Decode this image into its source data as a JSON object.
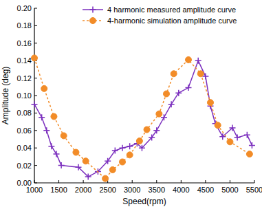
{
  "chart_data": {
    "type": "line",
    "x_label": "Speed(rpm)",
    "y_label": "Amplitude (deg)",
    "xlim": [
      1000,
      5500
    ],
    "xticks": [
      1000,
      1500,
      2000,
      2500,
      3000,
      3500,
      4000,
      4500,
      5000,
      5500
    ],
    "ylim": [
      0,
      0.2
    ],
    "yticks": [
      {
        "value": 0,
        "label": "0.00"
      },
      {
        "value": 0.02,
        "label": "0.02"
      },
      {
        "value": 0.04,
        "label": "0.04"
      },
      {
        "value": 0.06,
        "label": "0.06"
      },
      {
        "value": 0.08,
        "label": "0.08"
      },
      {
        "value": 0.1,
        "label": "0.10"
      },
      {
        "value": 0.12,
        "label": "0.12"
      },
      {
        "value": 0.14,
        "label": "0.14"
      },
      {
        "value": 0.16,
        "label": "0.16"
      },
      {
        "value": 0.18,
        "label": "0.18"
      },
      {
        "value": 0.2,
        "label": "0.20"
      }
    ],
    "grid": false,
    "legend": "top-right",
    "series": [
      {
        "name": "4 harmonic measured amplitude curve",
        "color": "#7b2fbe",
        "marker": "plus",
        "line_style": "solid",
        "x": [
          1000,
          1150,
          1250,
          1350,
          1450,
          1550,
          1900,
          2100,
          2300,
          2500,
          2650,
          2800,
          2950,
          3100,
          3200,
          3400,
          3500,
          3650,
          3800,
          3950,
          4150,
          4350,
          4500,
          4600,
          4700,
          4850,
          5050,
          5150,
          5350,
          5450
        ],
        "values": [
          0.09,
          0.075,
          0.06,
          0.042,
          0.033,
          0.02,
          0.018,
          0.007,
          0.013,
          0.025,
          0.037,
          0.04,
          0.042,
          0.045,
          0.04,
          0.052,
          0.06,
          0.075,
          0.09,
          0.103,
          0.109,
          0.14,
          0.122,
          0.088,
          0.068,
          0.053,
          0.063,
          0.052,
          0.055,
          0.043
        ]
      },
      {
        "name": "4-harmonic simulation amplitude curve",
        "color": "#f28c28",
        "marker": "circle",
        "line_style": "dashed",
        "x": [
          1000,
          1200,
          1400,
          1600,
          1850,
          2050,
          2450,
          2600,
          2800,
          2950,
          3150,
          3300,
          3550,
          3700,
          3850,
          4150,
          4400,
          4600,
          4750,
          5000,
          5400
        ],
        "values": [
          0.143,
          0.108,
          0.076,
          0.054,
          0.035,
          0.025,
          0.005,
          0.015,
          0.024,
          0.032,
          0.048,
          0.061,
          0.079,
          0.102,
          0.125,
          0.141,
          0.125,
          0.092,
          0.066,
          0.047,
          0.033
        ]
      }
    ]
  }
}
